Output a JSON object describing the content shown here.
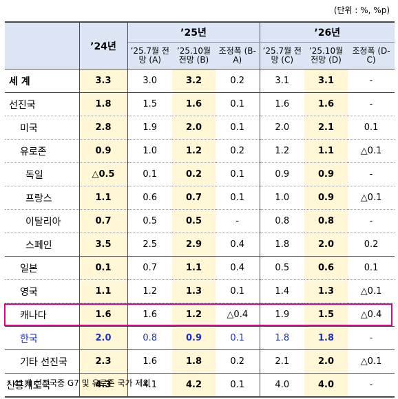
{
  "unit": "(단위 : %, %p)",
  "header": {
    "y24": "’24년",
    "y25": "’25년",
    "y26": "’26년",
    "sub": [
      "’25.7월 전망 (A)",
      "’25.10월 전망 (B)",
      "조정폭 (B-A)",
      "’25.7월 전망 (C)",
      "’25.10월 전망 (D)",
      "조정폭 (D-C)"
    ]
  },
  "rows": [
    {
      "name": "세  계",
      "v": [
        "3.3",
        "3.0",
        "3.2",
        "0.2",
        "3.1",
        "3.1",
        "-"
      ]
    },
    {
      "name": "선진국",
      "v": [
        "1.8",
        "1.5",
        "1.6",
        "0.1",
        "1.6",
        "1.6",
        "-"
      ]
    },
    {
      "name": "미국",
      "v": [
        "2.8",
        "1.9",
        "2.0",
        "0.1",
        "2.0",
        "2.1",
        "0.1"
      ]
    },
    {
      "name": "유로존",
      "v": [
        "0.9",
        "1.0",
        "1.2",
        "0.2",
        "1.2",
        "1.1",
        "△0.1"
      ]
    },
    {
      "name": "독일",
      "v": [
        "△0.5",
        "0.1",
        "0.2",
        "0.1",
        "0.9",
        "0.9",
        "-"
      ]
    },
    {
      "name": "프랑스",
      "v": [
        "1.1",
        "0.6",
        "0.7",
        "0.1",
        "1.0",
        "0.9",
        "△0.1"
      ]
    },
    {
      "name": "이탈리아",
      "v": [
        "0.7",
        "0.5",
        "0.5",
        "-",
        "0.8",
        "0.8",
        "-"
      ]
    },
    {
      "name": "스페인",
      "v": [
        "3.5",
        "2.5",
        "2.9",
        "0.4",
        "1.8",
        "2.0",
        "0.2"
      ]
    },
    {
      "name": "일본",
      "v": [
        "0.1",
        "0.7",
        "1.1",
        "0.4",
        "0.5",
        "0.6",
        "0.1"
      ]
    },
    {
      "name": "영국",
      "v": [
        "1.1",
        "1.2",
        "1.3",
        "0.1",
        "1.4",
        "1.3",
        "△0.1"
      ]
    },
    {
      "name": "캐나다",
      "v": [
        "1.6",
        "1.6",
        "1.2",
        "△0.4",
        "1.9",
        "1.5",
        "△0.4"
      ]
    },
    {
      "name": "한국",
      "v": [
        "2.0",
        "0.8",
        "0.9",
        "0.1",
        "1.8",
        "1.8",
        "-"
      ]
    },
    {
      "name": "기타 선진국",
      "v": [
        "2.3",
        "1.6",
        "1.8",
        "0.2",
        "2.1",
        "2.0",
        "△0.1"
      ]
    },
    {
      "name": "신흥개도국",
      "v": [
        "4.3",
        "4.1",
        "4.2",
        "0.1",
        "4.0",
        "4.0",
        "-"
      ]
    }
  ],
  "note": "* 41개 선진국중 G7 및 유로존 국가 제외"
}
